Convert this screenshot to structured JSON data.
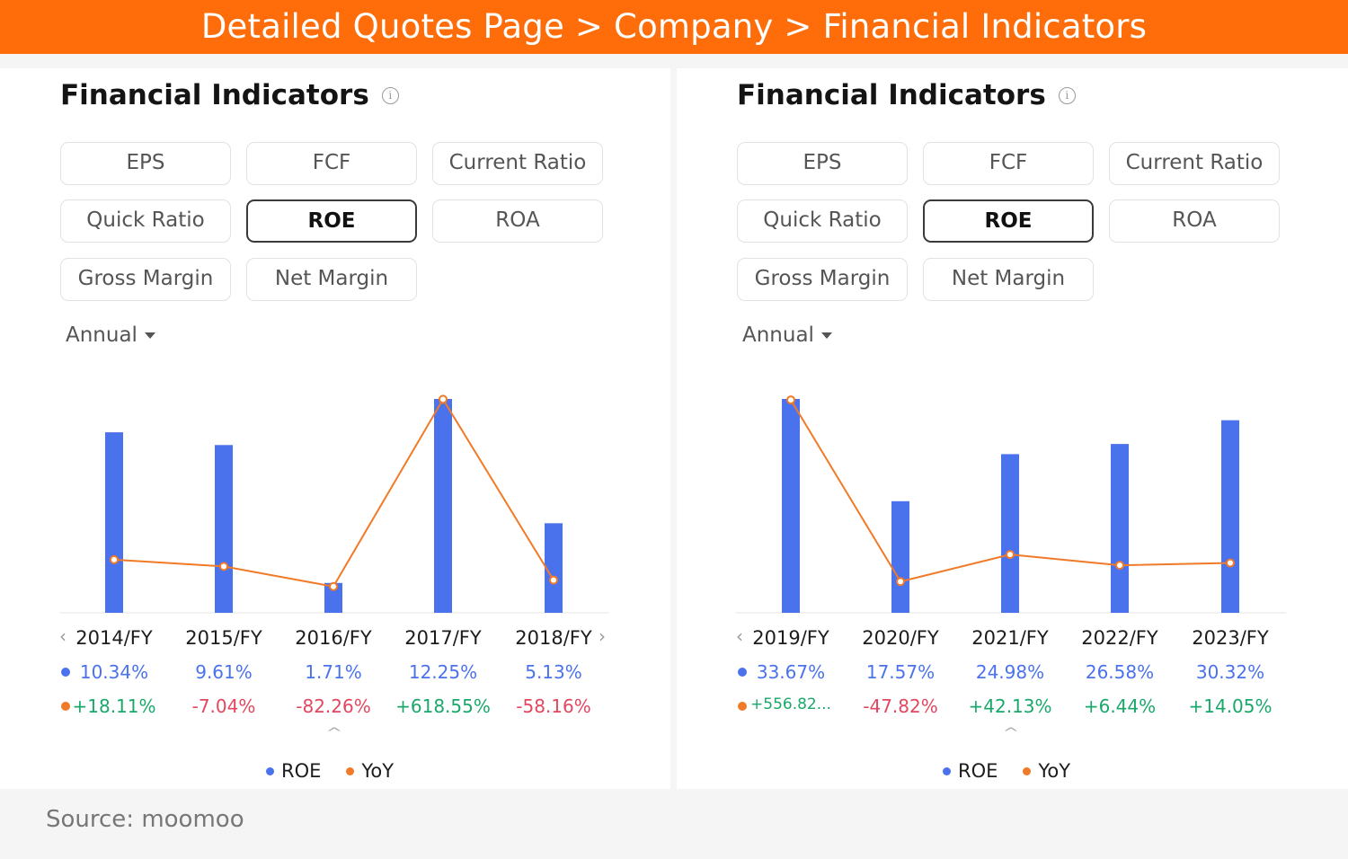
{
  "banner": {
    "title": "Detailed Quotes Page > Company > Financial Indicators"
  },
  "source": "Source: moomoo",
  "colors": {
    "accent": "#ff6c0a",
    "roe_bar": "#4a72ec",
    "yoy_line": "#f07a27",
    "positive": "#1aa86a",
    "negative": "#e2475f"
  },
  "panels": [
    {
      "title": "Financial Indicators",
      "buttons": [
        "EPS",
        "FCF",
        "Current Ratio",
        "Quick Ratio",
        "ROE",
        "ROA",
        "Gross Margin",
        "Net Margin"
      ],
      "active_button": "ROE",
      "period": "Annual",
      "legend": [
        "ROE",
        "YoY"
      ],
      "rows": {
        "years": [
          "2014/FY",
          "2015/FY",
          "2016/FY",
          "2017/FY",
          "2018/FY"
        ],
        "roe": [
          "10.34%",
          "9.61%",
          "1.71%",
          "12.25%",
          "5.13%"
        ],
        "yoy": [
          "+18.11%",
          "-7.04%",
          "-82.26%",
          "+618.55%",
          "-58.16%"
        ]
      }
    },
    {
      "title": "Financial Indicators",
      "buttons": [
        "EPS",
        "FCF",
        "Current Ratio",
        "Quick Ratio",
        "ROE",
        "ROA",
        "Gross Margin",
        "Net Margin"
      ],
      "active_button": "ROE",
      "period": "Annual",
      "legend": [
        "ROE",
        "YoY"
      ],
      "rows": {
        "years": [
          "2019/FY",
          "2020/FY",
          "2021/FY",
          "2022/FY",
          "2023/FY"
        ],
        "roe": [
          "33.67%",
          "17.57%",
          "24.98%",
          "26.58%",
          "30.32%"
        ],
        "yoy": [
          "+556.82...",
          "-47.82%",
          "+42.13%",
          "+6.44%",
          "+14.05%"
        ]
      }
    }
  ],
  "chart_data": [
    {
      "type": "bar",
      "categories": [
        "2014/FY",
        "2015/FY",
        "2016/FY",
        "2017/FY",
        "2018/FY"
      ],
      "series": [
        {
          "name": "ROE",
          "type": "bar",
          "values": [
            10.34,
            9.61,
            1.71,
            12.25,
            5.13
          ]
        },
        {
          "name": "YoY",
          "type": "line",
          "values": [
            18.11,
            -7.04,
            -82.26,
            618.55,
            -58.16
          ]
        }
      ],
      "ylim_roe": [
        0,
        12.25
      ],
      "ylim_yoy": [
        -100,
        620
      ]
    },
    {
      "type": "bar",
      "categories": [
        "2019/FY",
        "2020/FY",
        "2021/FY",
        "2022/FY",
        "2023/FY"
      ],
      "series": [
        {
          "name": "ROE",
          "type": "bar",
          "values": [
            33.67,
            17.57,
            24.98,
            26.58,
            30.32
          ]
        },
        {
          "name": "YoY",
          "type": "line",
          "values": [
            556.82,
            -47.82,
            42.13,
            6.44,
            14.05
          ]
        }
      ],
      "ylim_roe": [
        0,
        33.67
      ],
      "ylim_yoy": [
        -80,
        560
      ]
    }
  ]
}
